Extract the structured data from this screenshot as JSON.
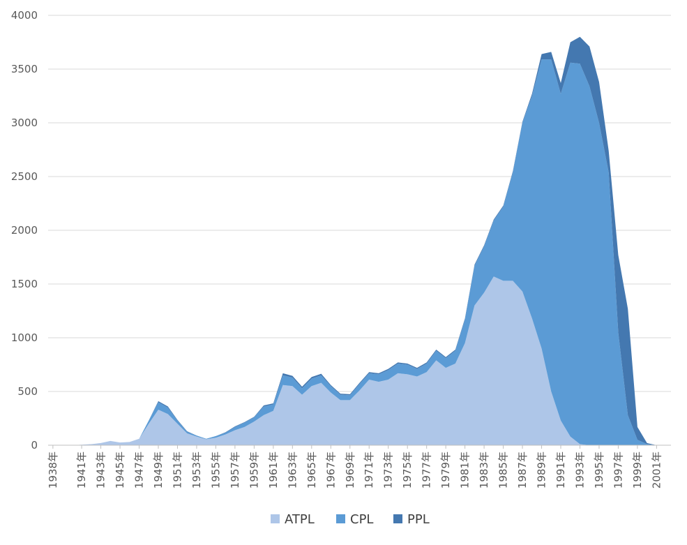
{
  "chart_data": {
    "type": "area",
    "stacked": true,
    "grid": true,
    "legend_position": "bottom",
    "title": "",
    "xlabel": "",
    "ylabel": "",
    "ylim": [
      0,
      4000
    ],
    "yticks": [
      0,
      500,
      1000,
      1500,
      2000,
      2500,
      3000,
      3500,
      4000
    ],
    "x": [
      "1938年",
      "1939年",
      "1940年",
      "1941年",
      "1942年",
      "1943年",
      "1944年",
      "1945年",
      "1946年",
      "1947年",
      "1948年",
      "1949年",
      "1950年",
      "1951年",
      "1952年",
      "1953年",
      "1954年",
      "1955年",
      "1956年",
      "1957年",
      "1958年",
      "1959年",
      "1960年",
      "1961年",
      "1962年",
      "1963年",
      "1964年",
      "1965年",
      "1966年",
      "1967年",
      "1968年",
      "1969年",
      "1970年",
      "1971年",
      "1972年",
      "1973年",
      "1974年",
      "1975年",
      "1976年",
      "1977年",
      "1978年",
      "1979年",
      "1980年",
      "1981年",
      "1982年",
      "1983年",
      "1984年",
      "1985年",
      "1986年",
      "1987年",
      "1988年",
      "1989年",
      "1990年",
      "1991年",
      "1992年",
      "1993年",
      "1994年",
      "1995年",
      "1996年",
      "1997年",
      "1998年",
      "1999年",
      "2000年",
      "2001年",
      "2002年"
    ],
    "x_tick_labels": [
      "1938年",
      "1941年",
      "1943年",
      "1945年",
      "1947年",
      "1949年",
      "1951年",
      "1953年",
      "1955年",
      "1957年",
      "1959年",
      "1961年",
      "1963年",
      "1965年",
      "1967年",
      "1969年",
      "1971年",
      "1973年",
      "1975年",
      "1977年",
      "1979年",
      "1981年",
      "1983年",
      "1985年",
      "1987年",
      "1989年",
      "1991年",
      "1993年",
      "1995年",
      "1997年",
      "1999年",
      "2001年"
    ],
    "series": [
      {
        "name": "ATPL",
        "color": "#aec6e8",
        "values": [
          0,
          0,
          0,
          5,
          10,
          20,
          40,
          25,
          30,
          60,
          200,
          330,
          290,
          200,
          110,
          80,
          55,
          70,
          100,
          140,
          170,
          220,
          280,
          320,
          560,
          550,
          470,
          550,
          580,
          490,
          420,
          420,
          510,
          610,
          590,
          610,
          670,
          660,
          640,
          680,
          790,
          720,
          760,
          950,
          1300,
          1420,
          1570,
          1530,
          1530,
          1430,
          1180,
          900,
          500,
          230,
          80,
          10,
          0,
          0,
          0,
          0,
          0,
          0,
          0,
          0,
          0
        ]
      },
      {
        "name": "CPL",
        "color": "#5b9bd5",
        "values": [
          0,
          0,
          0,
          0,
          0,
          0,
          0,
          0,
          0,
          0,
          30,
          70,
          60,
          30,
          15,
          10,
          5,
          15,
          15,
          30,
          40,
          40,
          80,
          60,
          90,
          80,
          60,
          70,
          70,
          60,
          50,
          45,
          60,
          60,
          70,
          90,
          90,
          90,
          70,
          80,
          90,
          90,
          120,
          220,
          370,
          430,
          520,
          690,
          1010,
          1570,
          2070,
          2690,
          3090,
          3040,
          3480,
          3540,
          3340,
          3000,
          2540,
          1050,
          280,
          50,
          10,
          0,
          0
        ]
      },
      {
        "name": "PPL",
        "color": "#4478b0",
        "values": [
          0,
          0,
          0,
          0,
          0,
          0,
          0,
          0,
          0,
          0,
          0,
          10,
          10,
          5,
          5,
          0,
          0,
          0,
          5,
          5,
          5,
          5,
          10,
          10,
          20,
          15,
          15,
          15,
          15,
          10,
          10,
          10,
          10,
          10,
          10,
          10,
          10,
          10,
          10,
          10,
          10,
          10,
          10,
          10,
          10,
          10,
          10,
          10,
          10,
          10,
          20,
          50,
          70,
          100,
          190,
          250,
          370,
          380,
          200,
          720,
          990,
          120,
          10,
          0,
          0
        ]
      }
    ]
  }
}
